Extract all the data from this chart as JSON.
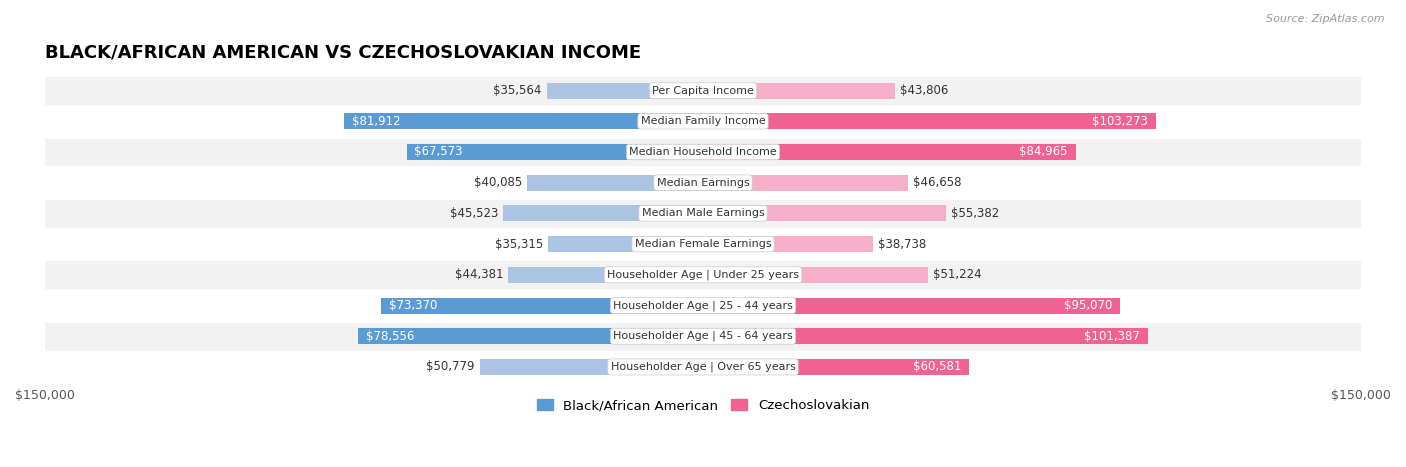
{
  "title": "BLACK/AFRICAN AMERICAN VS CZECHOSLOVAKIAN INCOME",
  "source": "Source: ZipAtlas.com",
  "categories": [
    "Per Capita Income",
    "Median Family Income",
    "Median Household Income",
    "Median Earnings",
    "Median Male Earnings",
    "Median Female Earnings",
    "Householder Age | Under 25 years",
    "Householder Age | 25 - 44 years",
    "Householder Age | 45 - 64 years",
    "Householder Age | Over 65 years"
  ],
  "black_values": [
    35564,
    81912,
    67573,
    40085,
    45523,
    35315,
    44381,
    73370,
    78556,
    50779
  ],
  "czech_values": [
    43806,
    103273,
    84965,
    46658,
    55382,
    38738,
    51224,
    95070,
    101387,
    60581
  ],
  "black_color_light": "#aac4e2",
  "black_color_dark": "#5b9bd5",
  "czech_color_light": "#f5afc8",
  "czech_color_dark": "#f06292",
  "max_value": 150000,
  "bar_height": 0.52,
  "threshold": 60000,
  "row_colors": [
    "#f2f2f2",
    "#ffffff"
  ],
  "legend_black": "Black/African American",
  "legend_czech": "Czechoslovakian"
}
